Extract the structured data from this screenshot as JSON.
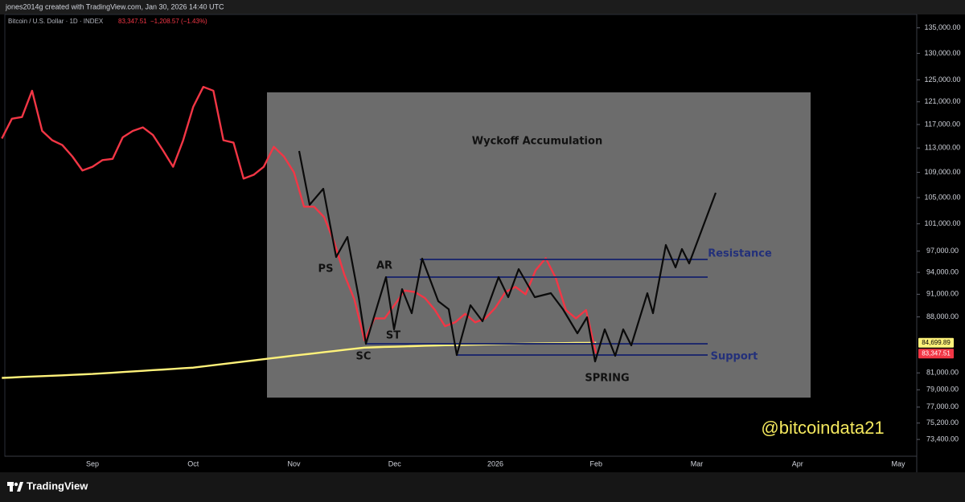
{
  "header": {
    "text": "jones2014g created with TradingView.com, Jan 30, 2026 14:40 UTC"
  },
  "footer": {
    "brand": "TradingView"
  },
  "chart_data": {
    "type": "line",
    "symbol": "Bitcoin / U.S. Dollar · 1D · INDEX",
    "last": "83,347.51",
    "change": "−1,208.57 (−1.43%)",
    "watermark": "@bitcoindata21",
    "log_scale": true,
    "grid": false,
    "ylim": [
      71600,
      137700
    ],
    "yticks": [
      {
        "value": 135000,
        "label": "135,000.00"
      },
      {
        "value": 130000,
        "label": "130,000.00"
      },
      {
        "value": 125000,
        "label": "125,000.00"
      },
      {
        "value": 121000,
        "label": "121,000.00"
      },
      {
        "value": 117000,
        "label": "117,000.00"
      },
      {
        "value": 113000,
        "label": "113,000.00"
      },
      {
        "value": 109000,
        "label": "109,000.00"
      },
      {
        "value": 105000,
        "label": "105,000.00"
      },
      {
        "value": 101000,
        "label": "101,000.00"
      },
      {
        "value": 97000,
        "label": "97,000.00"
      },
      {
        "value": 94000,
        "label": "94,000.00"
      },
      {
        "value": 91000,
        "label": "91,000.00"
      },
      {
        "value": 88000,
        "label": "88,000.00"
      },
      {
        "value": 81000,
        "label": "81,000.00"
      },
      {
        "value": 79000,
        "label": "79,000.00"
      },
      {
        "value": 77000,
        "label": "77,000.00"
      },
      {
        "value": 75200,
        "label": "75,200.00"
      },
      {
        "value": 73400,
        "label": "73,400.00"
      }
    ],
    "categories": [
      null,
      null,
      null,
      null,
      null,
      null,
      null,
      null,
      null,
      "Sep",
      null,
      null,
      null,
      null,
      null,
      null,
      null,
      null,
      null,
      "Oct",
      null,
      null,
      null,
      null,
      null,
      null,
      null,
      null,
      null,
      "Nov",
      null,
      null,
      null,
      null,
      null,
      null,
      null,
      null,
      null,
      "Dec",
      null,
      null,
      null,
      null,
      null,
      null,
      null,
      null,
      null,
      "2026",
      null,
      null,
      null,
      null,
      null,
      null,
      null,
      null,
      null,
      "Feb",
      null,
      null,
      null,
      null,
      null,
      null,
      null,
      null,
      null,
      "Mar",
      null,
      null,
      null,
      null,
      null,
      null,
      null,
      null,
      null,
      "Apr",
      null,
      null,
      null,
      null,
      null,
      null,
      null,
      null,
      null,
      "May",
      null,
      null,
      null,
      null,
      null
    ],
    "series": [
      {
        "color": "#fff27a",
        "last_value_label": "84,699.89",
        "values": [
          80400,
          80450,
          80510,
          80560,
          80610,
          80660,
          80710,
          80770,
          80820,
          80870,
          80950,
          81020,
          81100,
          81180,
          81250,
          81330,
          81400,
          81480,
          81560,
          81630,
          81780,
          81930,
          82070,
          82220,
          82370,
          82510,
          82660,
          82810,
          82950,
          83100,
          83240,
          83380,
          83520,
          83660,
          83810,
          83950,
          84090,
          84130,
          84170,
          84200,
          84240,
          84280,
          84320,
          84350,
          84390,
          84410,
          84440,
          84460,
          84490,
          84510,
          84540,
          84560,
          84590,
          84610,
          84620,
          84640,
          84650,
          84670,
          84680,
          84699.89,
          null,
          null,
          null,
          null,
          null,
          null,
          null,
          null,
          null,
          null,
          null,
          null,
          null,
          null,
          null,
          null,
          null,
          null,
          null,
          null,
          null,
          null,
          null,
          null,
          null,
          null,
          null,
          null,
          null,
          null,
          null,
          null,
          null,
          null,
          null
        ]
      },
      {
        "color": "#f23645",
        "last_value_label": "83,347.51",
        "values": [
          114600,
          118000,
          118300,
          123000,
          115900,
          114300,
          113500,
          111600,
          109300,
          109900,
          111000,
          111200,
          114800,
          115900,
          116500,
          115200,
          112600,
          109900,
          114300,
          120100,
          123700,
          123000,
          114300,
          113900,
          108000,
          108600,
          109900,
          113200,
          111600,
          109000,
          103600,
          103600,
          102000,
          98300,
          93700,
          90300,
          85000,
          87800,
          87800,
          89600,
          91500,
          91300,
          90500,
          88900,
          86800,
          87300,
          88400,
          87300,
          87800,
          89200,
          91300,
          92000,
          91000,
          94300,
          96000,
          93200,
          88900,
          87800,
          88900,
          83347.51,
          null,
          null,
          null,
          null,
          null,
          null,
          null,
          null,
          null,
          null,
          null,
          null,
          null,
          null,
          null,
          null,
          null,
          null,
          null,
          null,
          null,
          null,
          null,
          null,
          null,
          null,
          null,
          null,
          null,
          null,
          null,
          null,
          null,
          null,
          null
        ]
      }
    ],
    "annotations": [
      "Wyckoff Accumulation",
      "PS",
      "AR",
      "ST",
      "SC",
      "SPRING",
      "Resistance",
      "Support"
    ]
  }
}
